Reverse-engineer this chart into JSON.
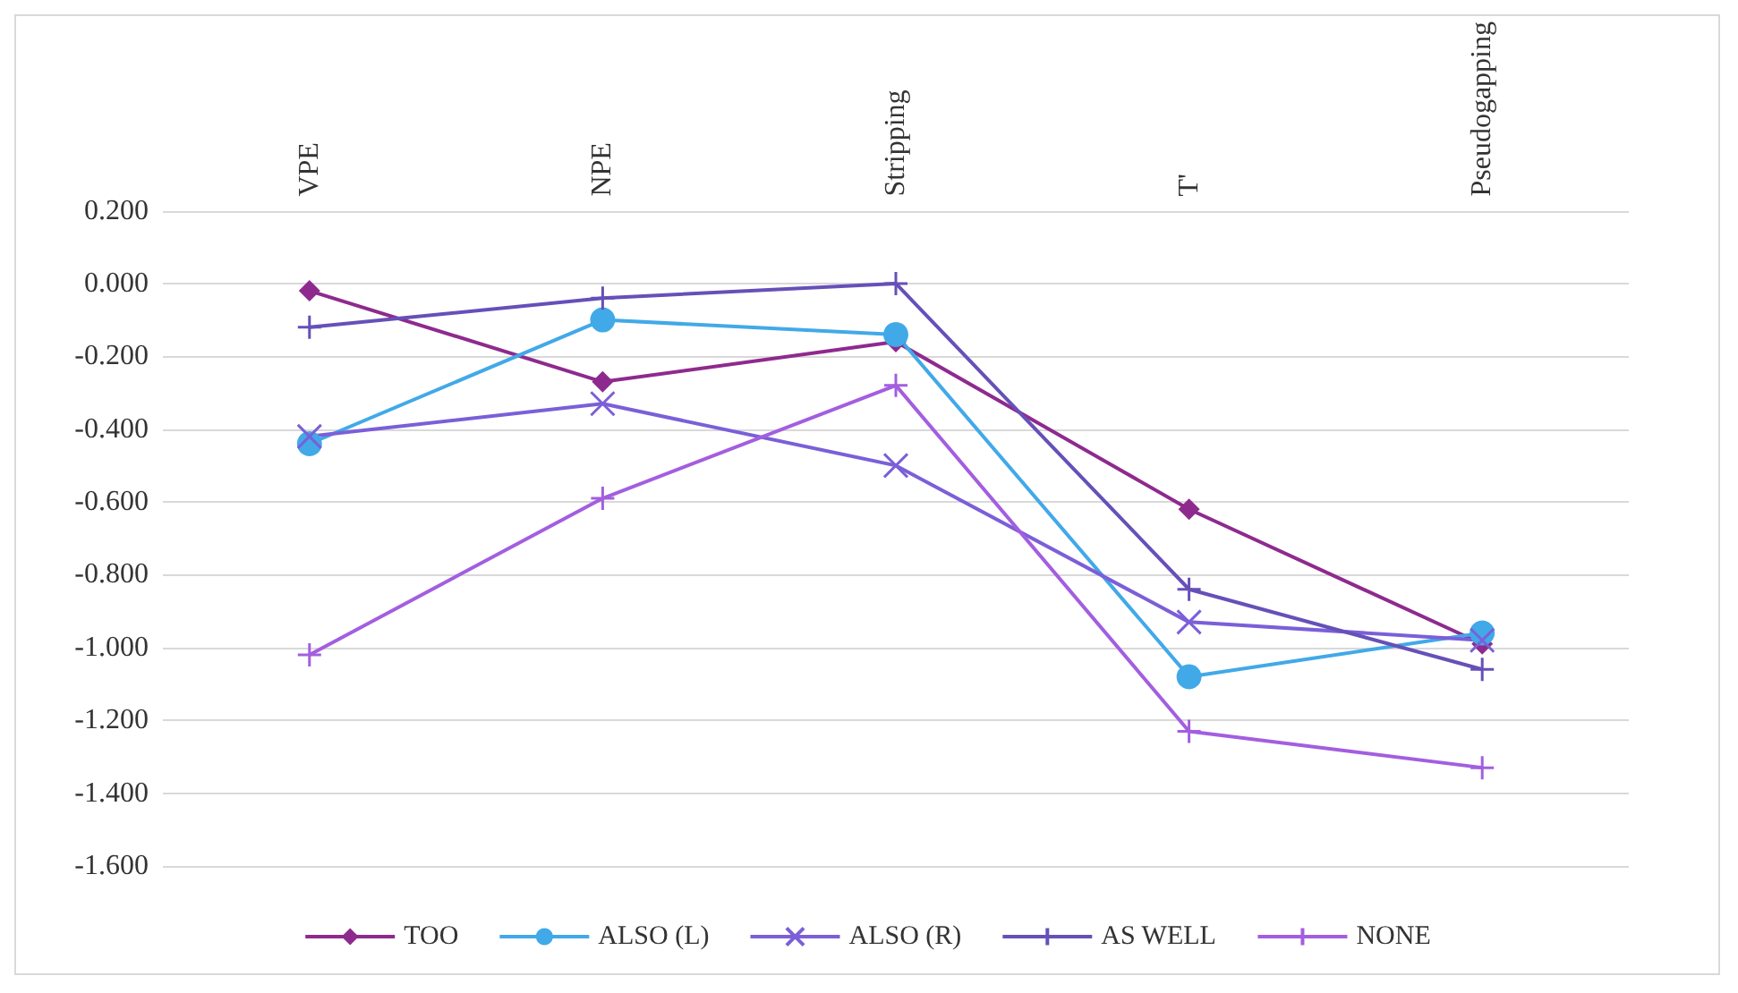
{
  "chart_data": {
    "type": "line",
    "categories": [
      "VPE",
      "NPE",
      "Stripping",
      "T'",
      "Pseudogapping"
    ],
    "series": [
      {
        "name": "TOO",
        "color": "#8e2a8e",
        "marker": "diamond",
        "values": [
          -0.02,
          -0.27,
          -0.16,
          -0.62,
          -0.99
        ]
      },
      {
        "name": "ALSO (L)",
        "color": "#41a9e8",
        "marker": "circle",
        "values": [
          -0.44,
          -0.1,
          -0.14,
          -1.08,
          -0.96
        ]
      },
      {
        "name": "ALSO (R)",
        "color": "#7b5fd8",
        "marker": "cross",
        "values": [
          -0.42,
          -0.33,
          -0.5,
          -0.93,
          -0.98
        ]
      },
      {
        "name": "AS WELL",
        "color": "#6650b8",
        "marker": "plus",
        "values": [
          -0.12,
          -0.04,
          0.0,
          -0.84,
          -1.06
        ]
      },
      {
        "name": "NONE",
        "color": "#a35ee0",
        "marker": "plus",
        "values": [
          -1.02,
          -0.59,
          -0.28,
          -1.23,
          -1.33
        ]
      }
    ],
    "ylim": [
      -1.6,
      0.2
    ],
    "yticks": [
      {
        "value": -1.6,
        "label": "-1.600"
      },
      {
        "value": -1.4,
        "label": "-1.400"
      },
      {
        "value": -1.2,
        "label": "-1.200"
      },
      {
        "value": -1.0,
        "label": "-1.000"
      },
      {
        "value": -0.8,
        "label": "-0.800"
      },
      {
        "value": -0.6,
        "label": "-0.600"
      },
      {
        "value": -0.4,
        "label": "-0.400"
      },
      {
        "value": -0.2,
        "label": "-0.200"
      },
      {
        "value": 0.0,
        "label": "0.000"
      },
      {
        "value": 0.2,
        "label": "0.200"
      }
    ],
    "grid": "y",
    "legend": "bottom"
  }
}
